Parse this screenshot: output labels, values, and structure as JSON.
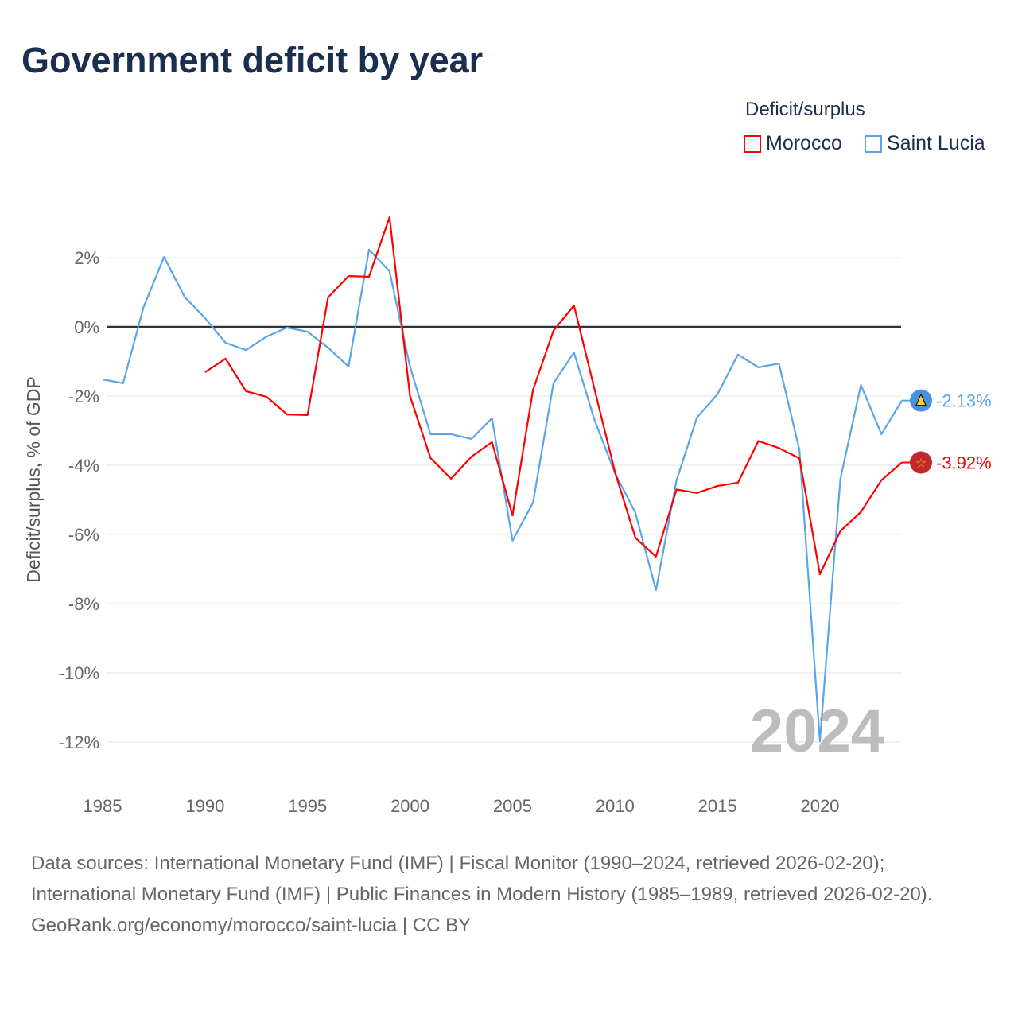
{
  "title": "Government deficit by year",
  "legend": {
    "title": "Deficit/surplus",
    "items": [
      {
        "name": "Morocco",
        "color": "#ff0000"
      },
      {
        "name": "Saint Lucia",
        "color": "#5aa5e8"
      }
    ]
  },
  "watermark_year": "2024",
  "footer": {
    "sources": "Data sources: International Monetary Fund (IMF) | Fiscal Monitor (1990–2024, retrieved 2026-02-20); International Monetary Fund (IMF) | Public Finances in Modern History (1985–1989, retrieved 2026-02-20).",
    "credit": "GeoRank.org/economy/morocco/saint-lucia | CC BY"
  },
  "chart_data": {
    "type": "line",
    "title": "Government deficit by year",
    "xlabel": "",
    "ylabel": "Deficit/surplus, % of GDP",
    "xlim": [
      1985,
      2024
    ],
    "ylim": [
      -12.5,
      3.3
    ],
    "x_ticks": [
      "1985",
      "1990",
      "1995",
      "2000",
      "2005",
      "2010",
      "2015",
      "2020"
    ],
    "y_ticks": [
      {
        "v": 2,
        "label": "2%"
      },
      {
        "v": 0,
        "label": "0%"
      },
      {
        "v": -2,
        "label": "-2%"
      },
      {
        "v": -4,
        "label": "-4%"
      },
      {
        "v": -6,
        "label": "-6%"
      },
      {
        "v": -8,
        "label": "-8%"
      },
      {
        "v": -10,
        "label": "-10%"
      },
      {
        "v": -12,
        "label": "-12%"
      }
    ],
    "grid": true,
    "legend_position": "top-right",
    "series": [
      {
        "name": "Saint Lucia",
        "color": "#5aa5e8",
        "end_label": "-2.13%",
        "start_year": 1985,
        "values": [
          -1.52,
          -1.63,
          0.57,
          2.02,
          0.87,
          0.25,
          -0.46,
          -0.67,
          -0.28,
          -0.02,
          -0.14,
          -0.6,
          -1.15,
          2.23,
          1.61,
          -1.15,
          -3.1,
          -3.1,
          -3.24,
          -2.64,
          -6.18,
          -5.08,
          -1.63,
          -0.74,
          -2.69,
          -4.23,
          -5.38,
          -7.61,
          -4.44,
          -2.62,
          -1.95,
          -0.8,
          -1.17,
          -1.06,
          -3.56,
          -11.98,
          -4.39,
          -1.68,
          -3.1,
          -2.13
        ]
      },
      {
        "name": "Morocco",
        "color": "#ff0000",
        "end_label": "-3.92%",
        "start_year": 1990,
        "values": [
          -1.31,
          -0.92,
          -1.86,
          -2.02,
          -2.53,
          -2.55,
          0.85,
          1.47,
          1.45,
          3.17,
          -2.0,
          -3.79,
          -4.39,
          -3.75,
          -3.33,
          -5.45,
          -1.82,
          -0.11,
          0.62,
          -1.8,
          -4.2,
          -6.1,
          -6.64,
          -4.7,
          -4.8,
          -4.6,
          -4.5,
          -3.3,
          -3.5,
          -3.8,
          -7.15,
          -5.9,
          -5.35,
          -4.43,
          -3.92
        ]
      }
    ]
  }
}
